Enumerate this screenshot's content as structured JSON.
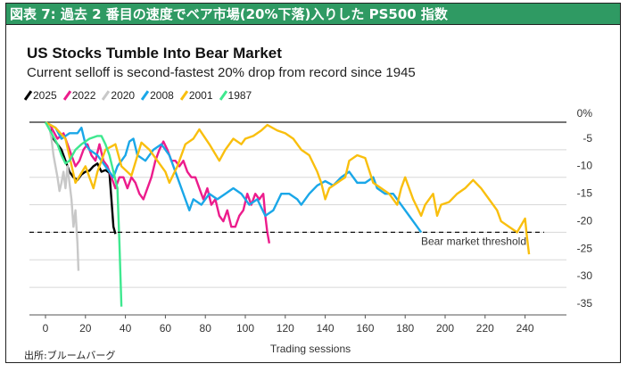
{
  "header": {
    "title": "図表 7: 過去 2 番目の速度でベア市場(20%下落)入りした PS500 指数"
  },
  "source": "出所:ブルームバーグ",
  "chart_data": {
    "type": "line",
    "title": "US Stocks Tumble Into Bear Market",
    "subtitle": "Current selloff is second-fastest 20% drop from record since 1945",
    "xlabel": "Trading sessions",
    "ylabel": "",
    "xlim": [
      -5,
      270
    ],
    "ylim": [
      -35,
      0
    ],
    "xticks": [
      0,
      20,
      40,
      60,
      80,
      100,
      120,
      140,
      160,
      180,
      200,
      220,
      240
    ],
    "yticks": [
      0,
      -5,
      -10,
      -15,
      -20,
      -25,
      -30,
      -35
    ],
    "ytick_labels": [
      "0%",
      "-5",
      "-10",
      "-15",
      "-20",
      "-25",
      "-30",
      "-35"
    ],
    "grid": "horizontal",
    "legend_position": "top-left",
    "threshold": {
      "value": -20,
      "label": "Bear market threshold"
    },
    "series": [
      {
        "name": "2025",
        "color": "#000000",
        "points": [
          [
            0,
            0
          ],
          [
            2,
            -1
          ],
          [
            4,
            -3
          ],
          [
            6,
            -4
          ],
          [
            8,
            -5
          ],
          [
            10,
            -7
          ],
          [
            12,
            -9
          ],
          [
            14,
            -10
          ],
          [
            16,
            -10.5
          ],
          [
            18,
            -9.5
          ],
          [
            20,
            -9
          ],
          [
            22,
            -8.8
          ],
          [
            24,
            -8
          ],
          [
            26,
            -7.5
          ],
          [
            28,
            -9
          ],
          [
            30,
            -8.7
          ],
          [
            32,
            -9.2
          ],
          [
            33,
            -14
          ],
          [
            34,
            -19
          ],
          [
            35,
            -20.3
          ]
        ]
      },
      {
        "name": "2022",
        "color": "#ec1c8c",
        "points": [
          [
            0,
            0
          ],
          [
            3,
            -1
          ],
          [
            6,
            -3
          ],
          [
            9,
            -2
          ],
          [
            11,
            -4
          ],
          [
            13,
            -6
          ],
          [
            15,
            -8
          ],
          [
            17,
            -7
          ],
          [
            19,
            -5
          ],
          [
            21,
            -4
          ],
          [
            23,
            -6
          ],
          [
            25,
            -7
          ],
          [
            27,
            -4
          ],
          [
            29,
            -7
          ],
          [
            31,
            -8
          ],
          [
            33,
            -10
          ],
          [
            35,
            -12
          ],
          [
            37,
            -10
          ],
          [
            39,
            -10
          ],
          [
            41,
            -12
          ],
          [
            43,
            -10
          ],
          [
            45,
            -11
          ],
          [
            47,
            -13
          ],
          [
            49,
            -14
          ],
          [
            51,
            -12
          ],
          [
            53,
            -10
          ],
          [
            55,
            -7
          ],
          [
            57,
            -5
          ],
          [
            59,
            -3.5
          ],
          [
            61,
            -5
          ],
          [
            63,
            -7
          ],
          [
            65,
            -7
          ],
          [
            67,
            -8
          ],
          [
            69,
            -7
          ],
          [
            71,
            -9
          ],
          [
            73,
            -10
          ],
          [
            75,
            -10
          ],
          [
            77,
            -12
          ],
          [
            79,
            -14
          ],
          [
            81,
            -12
          ],
          [
            83,
            -15
          ],
          [
            85,
            -14
          ],
          [
            87,
            -17
          ],
          [
            89,
            -18
          ],
          [
            91,
            -16
          ],
          [
            93,
            -19
          ],
          [
            95,
            -19
          ],
          [
            97,
            -17
          ],
          [
            99,
            -16
          ],
          [
            101,
            -13
          ],
          [
            103,
            -15
          ],
          [
            105,
            -13
          ],
          [
            107,
            -14
          ],
          [
            109,
            -13
          ],
          [
            110,
            -17
          ],
          [
            111,
            -20
          ],
          [
            112,
            -22
          ]
        ]
      },
      {
        "name": "2020",
        "color": "#c8c8c8",
        "points": [
          [
            0,
            0
          ],
          [
            2,
            -1
          ],
          [
            3,
            -3
          ],
          [
            4,
            -6
          ],
          [
            5,
            -8
          ],
          [
            6,
            -10
          ],
          [
            7,
            -12.5
          ],
          [
            8,
            -11
          ],
          [
            9,
            -9
          ],
          [
            10,
            -12
          ],
          [
            11,
            -8
          ],
          [
            12,
            -11
          ],
          [
            13,
            -14
          ],
          [
            14,
            -19
          ],
          [
            15,
            -16
          ],
          [
            16,
            -22
          ],
          [
            16.5,
            -27
          ]
        ]
      },
      {
        "name": "2008",
        "color": "#1aa7e8",
        "points": [
          [
            0,
            0
          ],
          [
            5,
            -1
          ],
          [
            8,
            -3
          ],
          [
            12,
            -2
          ],
          [
            16,
            -2
          ],
          [
            18,
            -1
          ],
          [
            20,
            -4
          ],
          [
            22,
            -5
          ],
          [
            26,
            -6
          ],
          [
            28,
            -7
          ],
          [
            30,
            -8
          ],
          [
            34,
            -10
          ],
          [
            36,
            -8
          ],
          [
            40,
            -6
          ],
          [
            42,
            -3.5
          ],
          [
            44,
            -3
          ],
          [
            46,
            -6
          ],
          [
            50,
            -7
          ],
          [
            54,
            -5
          ],
          [
            58,
            -4
          ],
          [
            62,
            -6
          ],
          [
            66,
            -10
          ],
          [
            70,
            -14
          ],
          [
            72,
            -16
          ],
          [
            74,
            -14
          ],
          [
            78,
            -15
          ],
          [
            82,
            -13
          ],
          [
            86,
            -14
          ],
          [
            90,
            -13
          ],
          [
            94,
            -12
          ],
          [
            98,
            -13
          ],
          [
            102,
            -15
          ],
          [
            106,
            -14
          ],
          [
            110,
            -17
          ],
          [
            114,
            -16
          ],
          [
            118,
            -13
          ],
          [
            122,
            -13
          ],
          [
            126,
            -14
          ],
          [
            128,
            -15
          ],
          [
            132,
            -13
          ],
          [
            136,
            -11.5
          ],
          [
            140,
            -10.7
          ],
          [
            144,
            -11.5
          ],
          [
            148,
            -10
          ],
          [
            152,
            -9
          ],
          [
            156,
            -11
          ],
          [
            160,
            -11
          ],
          [
            164,
            -10
          ],
          [
            166,
            -12
          ],
          [
            170,
            -13
          ],
          [
            174,
            -13
          ],
          [
            178,
            -15
          ],
          [
            182,
            -17
          ],
          [
            186,
            -19
          ],
          [
            188,
            -20
          ]
        ]
      },
      {
        "name": "2001",
        "color": "#f9bf0e",
        "points": [
          [
            0,
            0
          ],
          [
            5,
            -1
          ],
          [
            10,
            -3
          ],
          [
            15,
            -11
          ],
          [
            20,
            -8
          ],
          [
            24,
            -12
          ],
          [
            26,
            -9
          ],
          [
            30,
            -5
          ],
          [
            35,
            -4
          ],
          [
            38,
            -8
          ],
          [
            43,
            -9.7
          ],
          [
            48,
            -3.7
          ],
          [
            52,
            -5
          ],
          [
            56,
            -7
          ],
          [
            60,
            -9
          ],
          [
            62,
            -11
          ],
          [
            66,
            -8
          ],
          [
            70,
            -4
          ],
          [
            74,
            -3
          ],
          [
            77,
            -1.3
          ],
          [
            82,
            -4
          ],
          [
            87,
            -7
          ],
          [
            90,
            -5
          ],
          [
            94,
            -3
          ],
          [
            98,
            -4
          ],
          [
            100,
            -3
          ],
          [
            104,
            -2.5
          ],
          [
            108,
            -1.5
          ],
          [
            111,
            -0.5
          ],
          [
            116,
            -1.5
          ],
          [
            120,
            -2
          ],
          [
            124,
            -3
          ],
          [
            128,
            -5
          ],
          [
            132,
            -6
          ],
          [
            136,
            -9
          ],
          [
            138,
            -11
          ],
          [
            140,
            -14
          ],
          [
            142,
            -12
          ],
          [
            146,
            -11
          ],
          [
            150,
            -10
          ],
          [
            152,
            -7
          ],
          [
            156,
            -6
          ],
          [
            160,
            -6.5
          ],
          [
            164,
            -11
          ],
          [
            168,
            -12
          ],
          [
            172,
            -13
          ],
          [
            176,
            -15
          ],
          [
            178,
            -12
          ],
          [
            180,
            -10
          ],
          [
            184,
            -14
          ],
          [
            188,
            -17
          ],
          [
            190,
            -15
          ],
          [
            194,
            -13
          ],
          [
            196,
            -17
          ],
          [
            198,
            -15
          ],
          [
            202,
            -14.5
          ],
          [
            206,
            -13
          ],
          [
            210,
            -12
          ],
          [
            214,
            -10.5
          ],
          [
            218,
            -12
          ],
          [
            222,
            -14
          ],
          [
            226,
            -16
          ],
          [
            228,
            -18
          ],
          [
            232,
            -19
          ],
          [
            236,
            -20
          ],
          [
            240,
            -17.5
          ],
          [
            241,
            -21
          ],
          [
            242,
            -24
          ]
        ]
      },
      {
        "name": "1987",
        "color": "#3ee88f",
        "points": [
          [
            0,
            0
          ],
          [
            3,
            -2
          ],
          [
            6,
            -4
          ],
          [
            8,
            -6
          ],
          [
            10,
            -7.5
          ],
          [
            12,
            -7
          ],
          [
            15,
            -5
          ],
          [
            18,
            -4
          ],
          [
            22,
            -3
          ],
          [
            26,
            -2.5
          ],
          [
            28,
            -2.5
          ],
          [
            30,
            -4
          ],
          [
            32,
            -6
          ],
          [
            34,
            -9
          ],
          [
            36,
            -12
          ],
          [
            37,
            -22
          ],
          [
            38,
            -33.5
          ]
        ]
      }
    ]
  }
}
